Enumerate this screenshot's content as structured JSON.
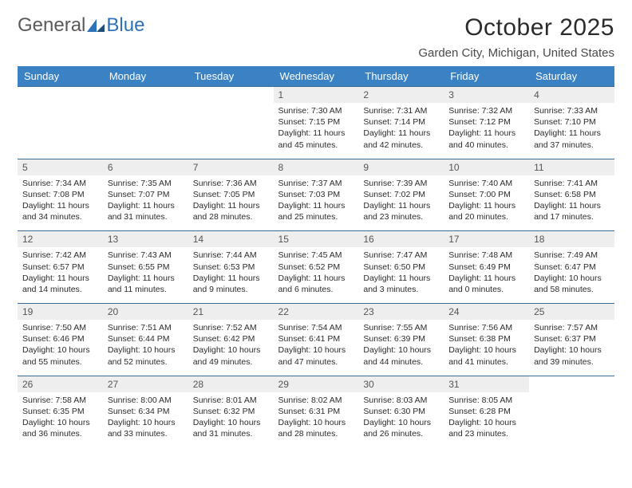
{
  "logo": {
    "word1": "General",
    "word2": "Blue"
  },
  "title": "October 2025",
  "subtitle": "Garden City, Michigan, United States",
  "colors": {
    "header_bg": "#3b82c4",
    "header_text": "#ffffff",
    "row_divider": "#3b6a95",
    "daynum_bg": "#eeeeee",
    "daynum_text": "#555555",
    "body_text": "#2b2b2b",
    "logo_gray": "#5a5a5a",
    "logo_blue": "#2d72b8",
    "page_bg": "#ffffff"
  },
  "typography": {
    "title_fontsize": 30,
    "subtitle_fontsize": 15,
    "dayheader_fontsize": 13,
    "daynum_fontsize": 12,
    "body_fontsize": 10.5,
    "font_family": "Arial"
  },
  "day_headers": [
    "Sunday",
    "Monday",
    "Tuesday",
    "Wednesday",
    "Thursday",
    "Friday",
    "Saturday"
  ],
  "weeks": [
    [
      null,
      null,
      null,
      {
        "n": "1",
        "sunrise": "Sunrise: 7:30 AM",
        "sunset": "Sunset: 7:15 PM",
        "daylight": "Daylight: 11 hours and 45 minutes."
      },
      {
        "n": "2",
        "sunrise": "Sunrise: 7:31 AM",
        "sunset": "Sunset: 7:14 PM",
        "daylight": "Daylight: 11 hours and 42 minutes."
      },
      {
        "n": "3",
        "sunrise": "Sunrise: 7:32 AM",
        "sunset": "Sunset: 7:12 PM",
        "daylight": "Daylight: 11 hours and 40 minutes."
      },
      {
        "n": "4",
        "sunrise": "Sunrise: 7:33 AM",
        "sunset": "Sunset: 7:10 PM",
        "daylight": "Daylight: 11 hours and 37 minutes."
      }
    ],
    [
      {
        "n": "5",
        "sunrise": "Sunrise: 7:34 AM",
        "sunset": "Sunset: 7:08 PM",
        "daylight": "Daylight: 11 hours and 34 minutes."
      },
      {
        "n": "6",
        "sunrise": "Sunrise: 7:35 AM",
        "sunset": "Sunset: 7:07 PM",
        "daylight": "Daylight: 11 hours and 31 minutes."
      },
      {
        "n": "7",
        "sunrise": "Sunrise: 7:36 AM",
        "sunset": "Sunset: 7:05 PM",
        "daylight": "Daylight: 11 hours and 28 minutes."
      },
      {
        "n": "8",
        "sunrise": "Sunrise: 7:37 AM",
        "sunset": "Sunset: 7:03 PM",
        "daylight": "Daylight: 11 hours and 25 minutes."
      },
      {
        "n": "9",
        "sunrise": "Sunrise: 7:39 AM",
        "sunset": "Sunset: 7:02 PM",
        "daylight": "Daylight: 11 hours and 23 minutes."
      },
      {
        "n": "10",
        "sunrise": "Sunrise: 7:40 AM",
        "sunset": "Sunset: 7:00 PM",
        "daylight": "Daylight: 11 hours and 20 minutes."
      },
      {
        "n": "11",
        "sunrise": "Sunrise: 7:41 AM",
        "sunset": "Sunset: 6:58 PM",
        "daylight": "Daylight: 11 hours and 17 minutes."
      }
    ],
    [
      {
        "n": "12",
        "sunrise": "Sunrise: 7:42 AM",
        "sunset": "Sunset: 6:57 PM",
        "daylight": "Daylight: 11 hours and 14 minutes."
      },
      {
        "n": "13",
        "sunrise": "Sunrise: 7:43 AM",
        "sunset": "Sunset: 6:55 PM",
        "daylight": "Daylight: 11 hours and 11 minutes."
      },
      {
        "n": "14",
        "sunrise": "Sunrise: 7:44 AM",
        "sunset": "Sunset: 6:53 PM",
        "daylight": "Daylight: 11 hours and 9 minutes."
      },
      {
        "n": "15",
        "sunrise": "Sunrise: 7:45 AM",
        "sunset": "Sunset: 6:52 PM",
        "daylight": "Daylight: 11 hours and 6 minutes."
      },
      {
        "n": "16",
        "sunrise": "Sunrise: 7:47 AM",
        "sunset": "Sunset: 6:50 PM",
        "daylight": "Daylight: 11 hours and 3 minutes."
      },
      {
        "n": "17",
        "sunrise": "Sunrise: 7:48 AM",
        "sunset": "Sunset: 6:49 PM",
        "daylight": "Daylight: 11 hours and 0 minutes."
      },
      {
        "n": "18",
        "sunrise": "Sunrise: 7:49 AM",
        "sunset": "Sunset: 6:47 PM",
        "daylight": "Daylight: 10 hours and 58 minutes."
      }
    ],
    [
      {
        "n": "19",
        "sunrise": "Sunrise: 7:50 AM",
        "sunset": "Sunset: 6:46 PM",
        "daylight": "Daylight: 10 hours and 55 minutes."
      },
      {
        "n": "20",
        "sunrise": "Sunrise: 7:51 AM",
        "sunset": "Sunset: 6:44 PM",
        "daylight": "Daylight: 10 hours and 52 minutes."
      },
      {
        "n": "21",
        "sunrise": "Sunrise: 7:52 AM",
        "sunset": "Sunset: 6:42 PM",
        "daylight": "Daylight: 10 hours and 49 minutes."
      },
      {
        "n": "22",
        "sunrise": "Sunrise: 7:54 AM",
        "sunset": "Sunset: 6:41 PM",
        "daylight": "Daylight: 10 hours and 47 minutes."
      },
      {
        "n": "23",
        "sunrise": "Sunrise: 7:55 AM",
        "sunset": "Sunset: 6:39 PM",
        "daylight": "Daylight: 10 hours and 44 minutes."
      },
      {
        "n": "24",
        "sunrise": "Sunrise: 7:56 AM",
        "sunset": "Sunset: 6:38 PM",
        "daylight": "Daylight: 10 hours and 41 minutes."
      },
      {
        "n": "25",
        "sunrise": "Sunrise: 7:57 AM",
        "sunset": "Sunset: 6:37 PM",
        "daylight": "Daylight: 10 hours and 39 minutes."
      }
    ],
    [
      {
        "n": "26",
        "sunrise": "Sunrise: 7:58 AM",
        "sunset": "Sunset: 6:35 PM",
        "daylight": "Daylight: 10 hours and 36 minutes."
      },
      {
        "n": "27",
        "sunrise": "Sunrise: 8:00 AM",
        "sunset": "Sunset: 6:34 PM",
        "daylight": "Daylight: 10 hours and 33 minutes."
      },
      {
        "n": "28",
        "sunrise": "Sunrise: 8:01 AM",
        "sunset": "Sunset: 6:32 PM",
        "daylight": "Daylight: 10 hours and 31 minutes."
      },
      {
        "n": "29",
        "sunrise": "Sunrise: 8:02 AM",
        "sunset": "Sunset: 6:31 PM",
        "daylight": "Daylight: 10 hours and 28 minutes."
      },
      {
        "n": "30",
        "sunrise": "Sunrise: 8:03 AM",
        "sunset": "Sunset: 6:30 PM",
        "daylight": "Daylight: 10 hours and 26 minutes."
      },
      {
        "n": "31",
        "sunrise": "Sunrise: 8:05 AM",
        "sunset": "Sunset: 6:28 PM",
        "daylight": "Daylight: 10 hours and 23 minutes."
      },
      null
    ]
  ]
}
